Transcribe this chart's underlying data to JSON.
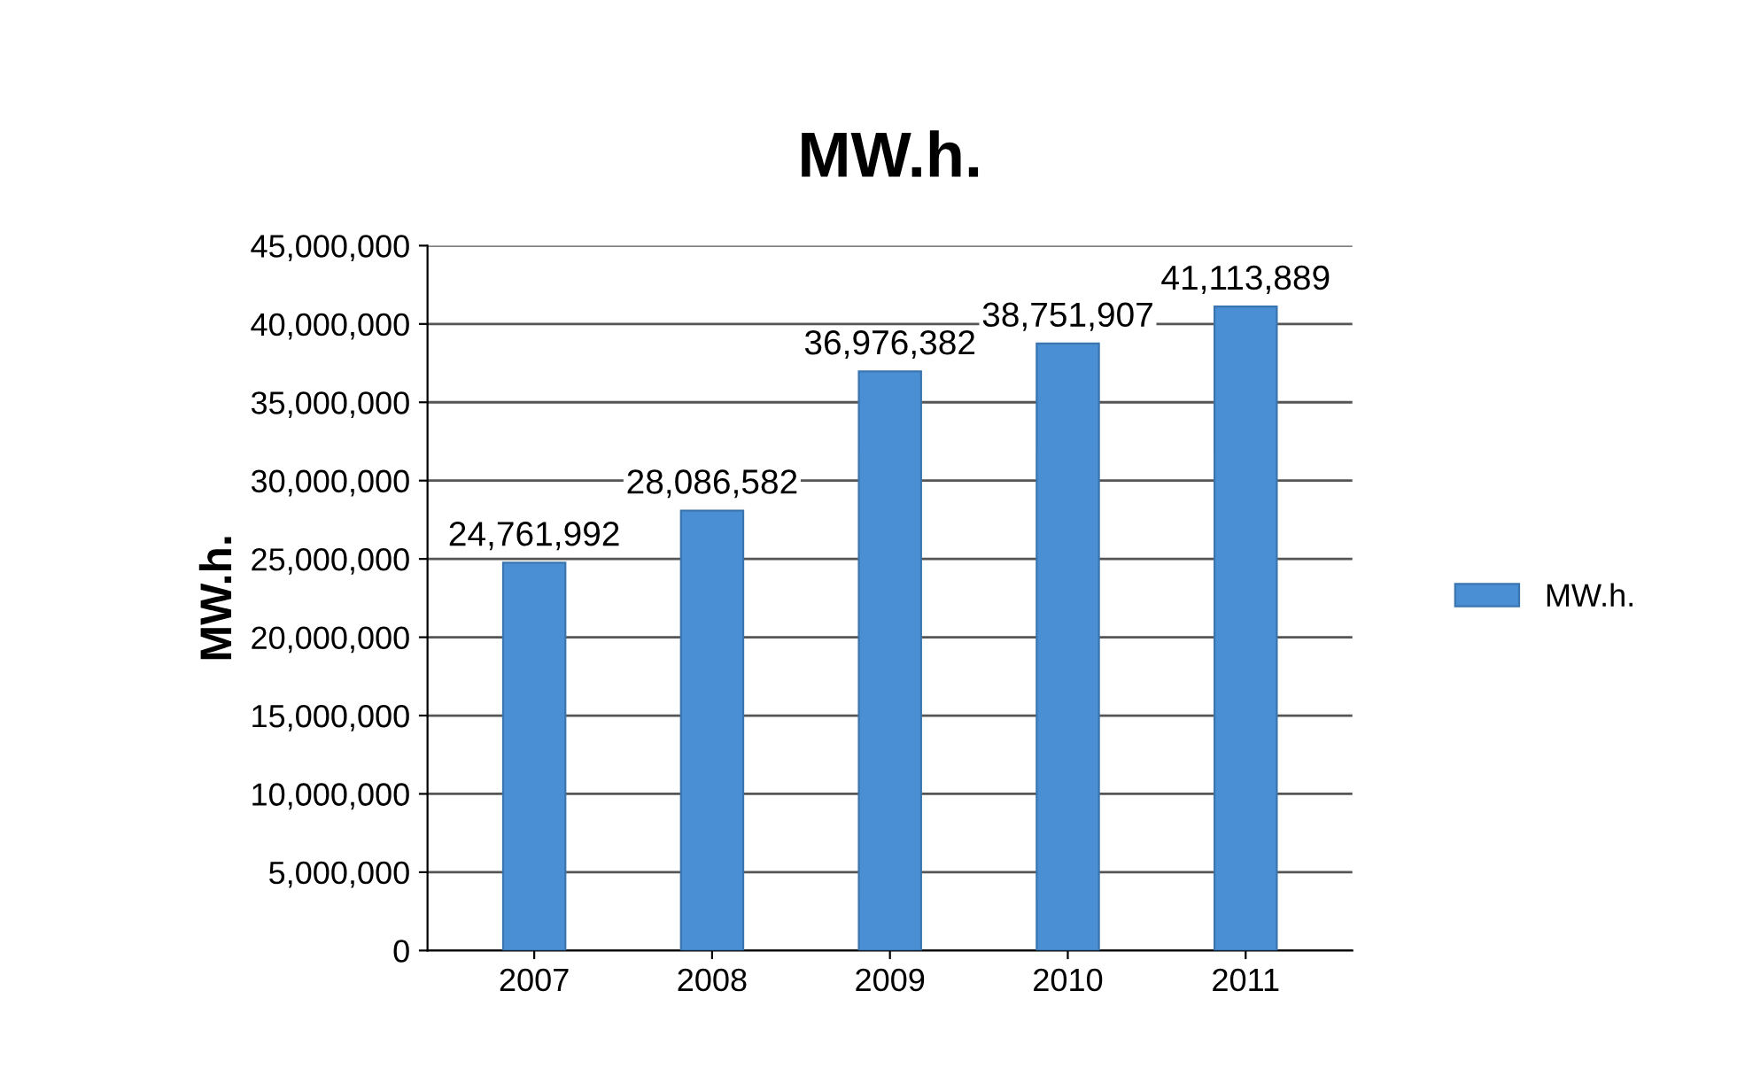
{
  "chart_data": {
    "type": "bar",
    "title": "MW.h.",
    "ylabel": "MW.h.",
    "categories": [
      "2007",
      "2008",
      "2009",
      "2010",
      "2011"
    ],
    "series": [
      {
        "name": "MW.h.",
        "color": "#4a8fd4",
        "values": [
          24761992,
          28086582,
          36976382,
          38751907,
          41113889
        ],
        "value_labels": [
          "24,761,992",
          "28,086,582",
          "36,976,382",
          "38,751,907",
          "41,113,889"
        ]
      }
    ],
    "ylim": [
      0,
      45000000
    ],
    "yticks": [
      {
        "value": 0,
        "label": "0"
      },
      {
        "value": 5000000,
        "label": "5,000,000"
      },
      {
        "value": 10000000,
        "label": "10,000,000"
      },
      {
        "value": 15000000,
        "label": "15,000,000"
      },
      {
        "value": 20000000,
        "label": "20,000,000"
      },
      {
        "value": 25000000,
        "label": "25,000,000"
      },
      {
        "value": 30000000,
        "label": "30,000,000"
      },
      {
        "value": 35000000,
        "label": "35,000,000"
      },
      {
        "value": 40000000,
        "label": "40,000,000"
      },
      {
        "value": 45000000,
        "label": "45,000,000"
      }
    ],
    "grid": "y",
    "legend": "right"
  }
}
